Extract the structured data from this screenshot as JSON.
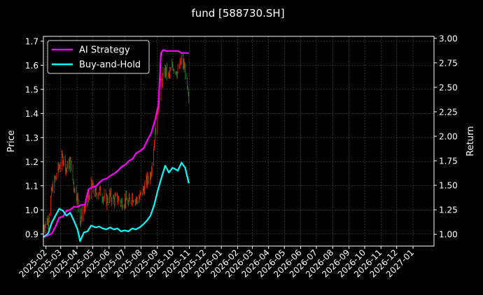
{
  "chart_data": {
    "type": "line",
    "title": "fund [588730.SH]",
    "ylabel_left": "Price",
    "ylabel_right": "Return",
    "xlabel": "",
    "grid": true,
    "legend_position": "top-left",
    "colors": {
      "background": "#000000",
      "axes": "#ffffff",
      "ai_strategy": "#ff00ff",
      "buy_and_hold": "#00ffff",
      "candle_up": "#ff2200",
      "candle_down": "#1f8a1f",
      "grid": "#555555"
    },
    "x_ticks": [
      "2025-02",
      "2025-03",
      "2025-04",
      "2025-05",
      "2025-06",
      "2025-07",
      "2025-08",
      "2025-09",
      "2025-10",
      "2025-11",
      "2025-12",
      "2026-01",
      "2026-02",
      "2026-03",
      "2026-04",
      "2026-05",
      "2026-06",
      "2026-07",
      "2026-08",
      "2026-09",
      "2026-10",
      "2026-11",
      "2026-12",
      "2027-01"
    ],
    "xlim": [
      "2025-01-27",
      "2027-02-10"
    ],
    "ylim_left": [
      0.85,
      1.72
    ],
    "y_ticks_left": [
      "0.9",
      "1.0",
      "1.1",
      "1.2",
      "1.3",
      "1.4",
      "1.5",
      "1.6",
      "1.7"
    ],
    "ylim_right": [
      0.88,
      3.02
    ],
    "y_ticks_right": [
      "1.00",
      "1.25",
      "1.50",
      "1.75",
      "2.00",
      "2.25",
      "2.50",
      "2.75",
      "3.00"
    ],
    "price_series": {
      "name": "Price",
      "x": [
        "2025-01-27",
        "2025-02-05",
        "2025-02-12",
        "2025-02-19",
        "2025-02-26",
        "2025-03-05",
        "2025-03-12",
        "2025-03-19",
        "2025-03-26",
        "2025-04-02",
        "2025-04-07",
        "2025-04-14",
        "2025-04-21",
        "2025-04-28",
        "2025-05-06",
        "2025-05-13",
        "2025-05-20",
        "2025-05-27",
        "2025-06-03",
        "2025-06-10",
        "2025-06-17",
        "2025-06-24",
        "2025-07-01",
        "2025-07-08",
        "2025-07-15",
        "2025-07-22",
        "2025-07-29",
        "2025-08-05",
        "2025-08-12",
        "2025-08-19",
        "2025-08-26",
        "2025-09-02",
        "2025-09-09",
        "2025-09-16",
        "2025-09-23",
        "2025-09-30",
        "2025-10-10",
        "2025-10-17",
        "2025-10-24",
        "2025-10-31"
      ],
      "values": [
        0.93,
        0.96,
        1.08,
        1.13,
        1.18,
        1.22,
        1.17,
        1.2,
        1.1,
        1.05,
        0.96,
        1.0,
        1.03,
        1.1,
        1.07,
        1.08,
        1.06,
        1.04,
        1.06,
        1.04,
        1.05,
        1.03,
        1.04,
        1.03,
        1.06,
        1.04,
        1.05,
        1.08,
        1.12,
        1.15,
        1.28,
        1.42,
        1.53,
        1.58,
        1.55,
        1.6,
        1.57,
        1.62,
        1.58,
        1.44
      ]
    },
    "series": [
      {
        "name": "AI Strategy",
        "x": [
          "2025-01-27",
          "2025-02-05",
          "2025-02-12",
          "2025-02-19",
          "2025-02-26",
          "2025-03-05",
          "2025-03-12",
          "2025-03-19",
          "2025-03-26",
          "2025-04-02",
          "2025-04-09",
          "2025-04-16",
          "2025-04-23",
          "2025-04-30",
          "2025-05-07",
          "2025-05-14",
          "2025-05-21",
          "2025-05-28",
          "2025-06-04",
          "2025-06-11",
          "2025-06-18",
          "2025-06-25",
          "2025-07-02",
          "2025-07-09",
          "2025-07-16",
          "2025-07-23",
          "2025-07-30",
          "2025-08-06",
          "2025-08-13",
          "2025-08-20",
          "2025-08-27",
          "2025-09-03",
          "2025-09-08",
          "2025-09-12",
          "2025-09-19",
          "2025-09-26",
          "2025-10-03",
          "2025-10-10",
          "2025-10-17",
          "2025-10-24",
          "2025-10-31"
        ],
        "values": [
          0.97,
          0.99,
          1.01,
          1.08,
          1.17,
          1.18,
          1.24,
          1.25,
          1.28,
          1.28,
          1.3,
          1.3,
          1.46,
          1.48,
          1.49,
          1.53,
          1.56,
          1.57,
          1.6,
          1.62,
          1.65,
          1.69,
          1.71,
          1.75,
          1.77,
          1.83,
          1.85,
          1.88,
          1.96,
          2.03,
          2.15,
          2.32,
          2.85,
          2.88,
          2.87,
          2.87,
          2.87,
          2.87,
          2.85,
          2.85,
          2.85
        ]
      },
      {
        "name": "Buy-and-Hold",
        "x": [
          "2025-01-27",
          "2025-02-05",
          "2025-02-12",
          "2025-02-19",
          "2025-02-26",
          "2025-03-05",
          "2025-03-12",
          "2025-03-19",
          "2025-03-26",
          "2025-04-02",
          "2025-04-07",
          "2025-04-14",
          "2025-04-21",
          "2025-04-28",
          "2025-05-06",
          "2025-05-13",
          "2025-05-20",
          "2025-05-27",
          "2025-06-03",
          "2025-06-10",
          "2025-06-17",
          "2025-06-24",
          "2025-07-01",
          "2025-07-08",
          "2025-07-15",
          "2025-07-22",
          "2025-07-29",
          "2025-08-05",
          "2025-08-12",
          "2025-08-19",
          "2025-08-26",
          "2025-09-02",
          "2025-09-09",
          "2025-09-16",
          "2025-09-23",
          "2025-09-30",
          "2025-10-10",
          "2025-10-17",
          "2025-10-24",
          "2025-10-31"
        ],
        "values": [
          0.97,
          1.01,
          1.12,
          1.19,
          1.26,
          1.24,
          1.19,
          1.22,
          1.14,
          1.05,
          0.93,
          1.02,
          1.03,
          1.09,
          1.07,
          1.08,
          1.06,
          1.05,
          1.07,
          1.05,
          1.06,
          1.03,
          1.04,
          1.03,
          1.06,
          1.05,
          1.07,
          1.1,
          1.14,
          1.19,
          1.3,
          1.45,
          1.58,
          1.7,
          1.63,
          1.68,
          1.65,
          1.73,
          1.68,
          1.52
        ]
      }
    ]
  }
}
